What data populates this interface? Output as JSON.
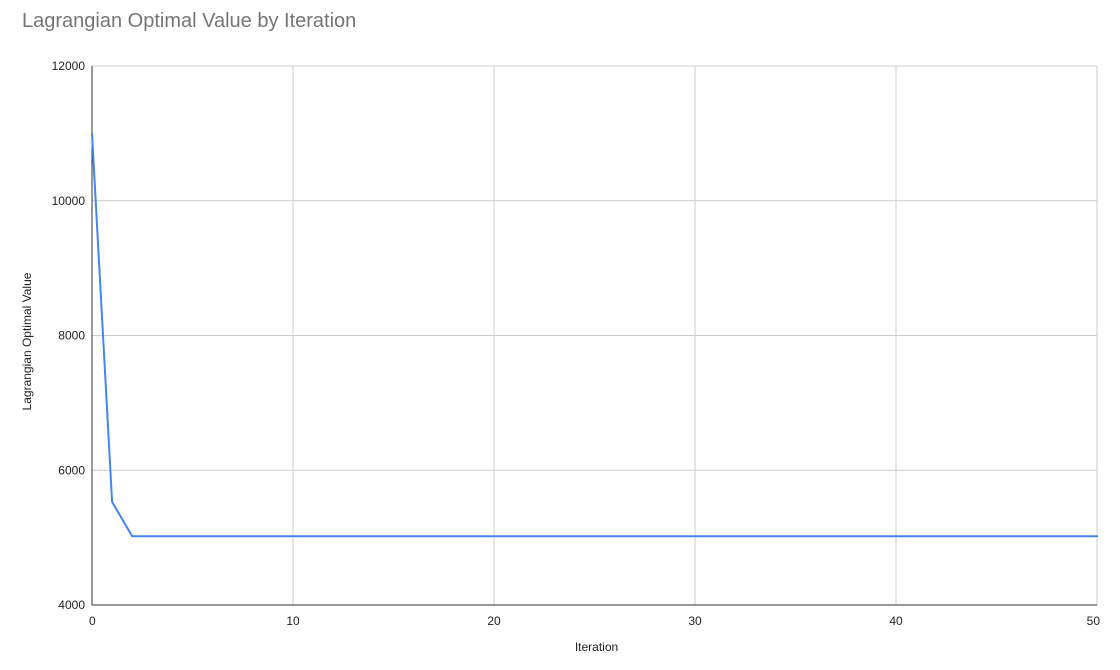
{
  "chart_data": {
    "type": "line",
    "title": "Lagrangian Optimal Value by Iteration",
    "xlabel": "Iteration",
    "ylabel": "Lagrangian Optimal Value",
    "xlim": [
      0,
      50
    ],
    "ylim": [
      4000,
      12000
    ],
    "x_ticks": [
      0,
      10,
      20,
      30,
      40,
      50
    ],
    "y_ticks": [
      4000,
      6000,
      8000,
      10000,
      12000
    ],
    "grid": true,
    "legend": "none",
    "series": [
      {
        "color": "#4285f4",
        "x": [
          0,
          1,
          2,
          3,
          4,
          5,
          6,
          7,
          8,
          9,
          10,
          11,
          12,
          13,
          14,
          15,
          16,
          17,
          18,
          19,
          20,
          21,
          22,
          23,
          24,
          25,
          26,
          27,
          28,
          29,
          30,
          31,
          32,
          33,
          34,
          35,
          36,
          37,
          38,
          39,
          40,
          41,
          42,
          43,
          44,
          45,
          46,
          47,
          48,
          49,
          50
        ],
        "values": [
          11000,
          5530,
          5020,
          5020,
          5020,
          5020,
          5020,
          5020,
          5020,
          5020,
          5020,
          5020,
          5020,
          5020,
          5020,
          5020,
          5020,
          5020,
          5020,
          5020,
          5020,
          5020,
          5020,
          5020,
          5020,
          5020,
          5020,
          5020,
          5020,
          5020,
          5020,
          5020,
          5020,
          5020,
          5020,
          5020,
          5020,
          5020,
          5020,
          5020,
          5020,
          5020,
          5020,
          5020,
          5020,
          5020,
          5020,
          5020,
          5020,
          5020,
          5020
        ]
      }
    ]
  }
}
